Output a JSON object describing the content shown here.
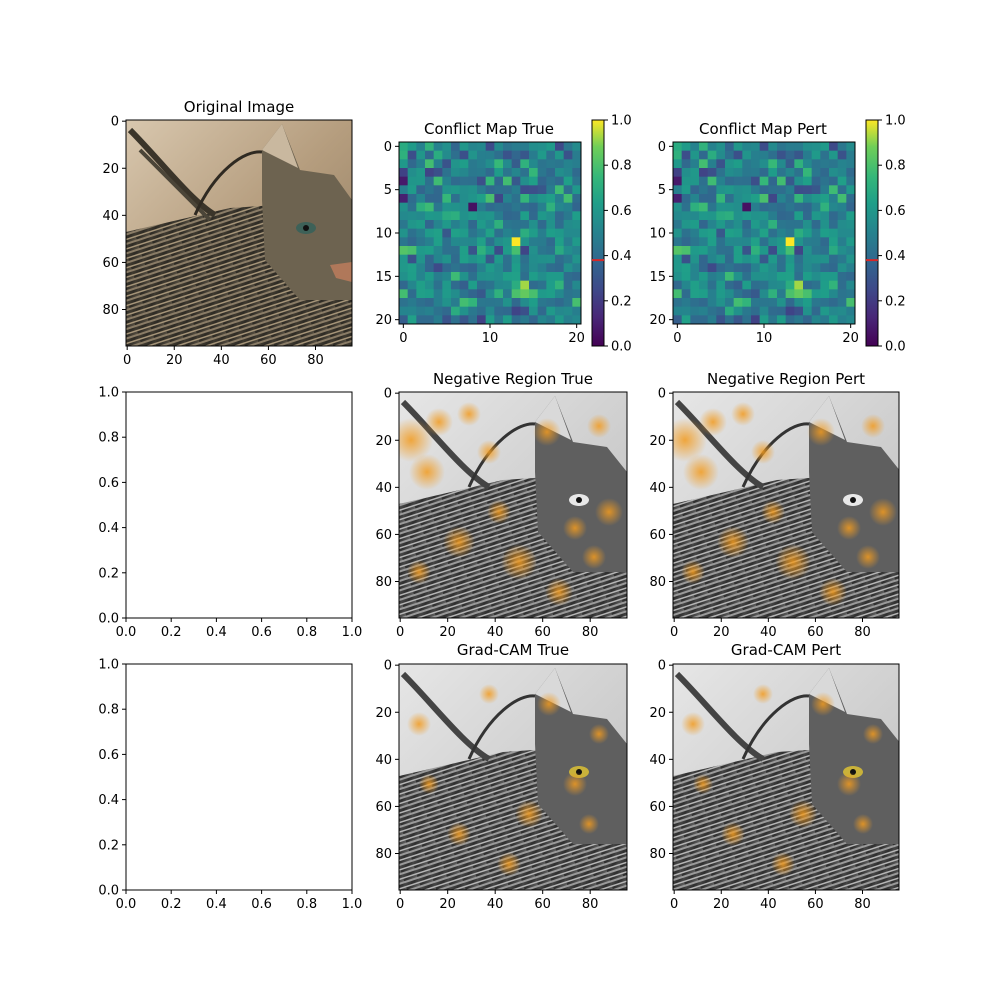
{
  "figure": {
    "panels": {
      "original": {
        "title": "Original Image"
      },
      "conflict_true": {
        "title": "Conflict Map True"
      },
      "conflict_pert": {
        "title": "Conflict Map Pert"
      },
      "empty_row2": {
        "title": ""
      },
      "negative_true": {
        "title": "Negative Region True"
      },
      "negative_pert": {
        "title": "Negative Region Pert"
      },
      "empty_row3": {
        "title": ""
      },
      "gradcam_true": {
        "title": "Grad-CAM True"
      },
      "gradcam_pert": {
        "title": "Grad-CAM Pert"
      }
    }
  },
  "chart_data": [
    {
      "id": "original",
      "type": "image",
      "title": "Original Image",
      "xticks": [
        0,
        20,
        40,
        60,
        80
      ],
      "yticks": [
        0,
        20,
        40,
        60,
        80
      ],
      "xlim": [
        -0.5,
        95.5
      ],
      "ylim": [
        95.5,
        -0.5
      ]
    },
    {
      "id": "conflict_true",
      "type": "heatmap",
      "title": "Conflict Map True",
      "grid_size": 21,
      "xticks": [
        0,
        10,
        20
      ],
      "yticks": [
        0,
        5,
        10,
        15,
        20
      ],
      "colorbar": {
        "min": 0.0,
        "max": 1.0,
        "ticks": [
          "0.0",
          "0.2",
          "0.4",
          "0.6",
          "0.8",
          "1.0"
        ],
        "marker_value": 0.38,
        "colormap": "viridis"
      }
    },
    {
      "id": "conflict_pert",
      "type": "heatmap",
      "title": "Conflict Map Pert",
      "grid_size": 21,
      "xticks": [
        0,
        10,
        20
      ],
      "yticks": [
        0,
        5,
        10,
        15,
        20
      ],
      "colorbar": {
        "min": 0.0,
        "max": 1.0,
        "ticks": [
          "0.0",
          "0.2",
          "0.4",
          "0.6",
          "0.8",
          "1.0"
        ],
        "marker_value": 0.38,
        "colormap": "viridis"
      }
    },
    {
      "id": "empty_row2",
      "type": "empty",
      "xticks": [
        "0.0",
        "0.2",
        "0.4",
        "0.6",
        "0.8",
        "1.0"
      ],
      "yticks": [
        "0.0",
        "0.2",
        "0.4",
        "0.6",
        "0.8",
        "1.0"
      ],
      "xlim": [
        0,
        1
      ],
      "ylim": [
        0,
        1
      ]
    },
    {
      "id": "negative_true",
      "type": "image",
      "title": "Negative Region True",
      "xticks": [
        0,
        20,
        40,
        60,
        80
      ],
      "yticks": [
        0,
        20,
        40,
        60,
        80
      ]
    },
    {
      "id": "negative_pert",
      "type": "image",
      "title": "Negative Region Pert",
      "xticks": [
        0,
        20,
        40,
        60,
        80
      ],
      "yticks": [
        0,
        20,
        40,
        60,
        80
      ]
    },
    {
      "id": "empty_row3",
      "type": "empty",
      "xticks": [
        "0.0",
        "0.2",
        "0.4",
        "0.6",
        "0.8",
        "1.0"
      ],
      "yticks": [
        "0.0",
        "0.2",
        "0.4",
        "0.6",
        "0.8",
        "1.0"
      ],
      "xlim": [
        0,
        1
      ],
      "ylim": [
        0,
        1
      ]
    },
    {
      "id": "gradcam_true",
      "type": "image",
      "title": "Grad-CAM True",
      "xticks": [
        0,
        20,
        40,
        60,
        80
      ],
      "yticks": [
        0,
        20,
        40,
        60,
        80
      ]
    },
    {
      "id": "gradcam_pert",
      "type": "image",
      "title": "Grad-CAM Pert",
      "xticks": [
        0,
        20,
        40,
        60,
        80
      ],
      "yticks": [
        0,
        20,
        40,
        60,
        80
      ]
    }
  ],
  "colors": {
    "colorbar_marker": "#d62728",
    "heatmap_base": "#2a788e",
    "overlay_orange": "#f29b1f",
    "sepia_bg": "#c8b49a"
  }
}
